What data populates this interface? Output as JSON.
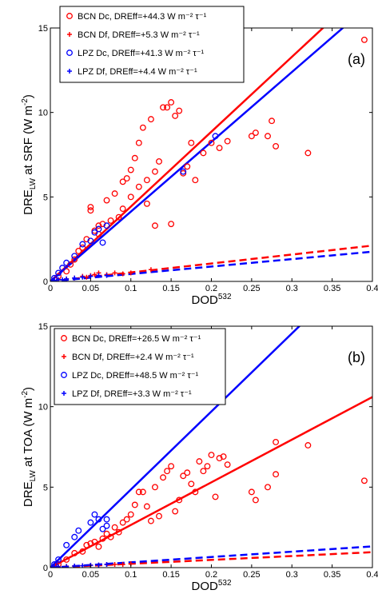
{
  "chart_data": [
    {
      "type": "scatter",
      "panel_label": "(a)",
      "xlabel": {
        "main": "DOD",
        "sup": "532"
      },
      "ylabel": {
        "main": "DRE",
        "sub": "LW",
        "rest": " at SRF (W m",
        "sup": "-2",
        "end": ")"
      },
      "xlim": [
        0,
        0.4
      ],
      "ylim": [
        0,
        15
      ],
      "xticks": [
        0,
        0.05,
        0.1,
        0.15,
        0.2,
        0.25,
        0.3,
        0.35,
        0.4
      ],
      "yticks": [
        0,
        5,
        10,
        15
      ],
      "legend": "upper left",
      "series": [
        {
          "name": "BCN Dc, DREff=+44.3 W m⁻² τ⁻¹",
          "color": "#ff0000",
          "marker": "circle",
          "line_style": "solid",
          "slope": 44.3,
          "x": [
            0.01,
            0.02,
            0.025,
            0.03,
            0.035,
            0.04,
            0.045,
            0.05,
            0.05,
            0.055,
            0.06,
            0.06,
            0.065,
            0.07,
            0.075,
            0.08,
            0.085,
            0.09,
            0.09,
            0.095,
            0.1,
            0.1,
            0.105,
            0.11,
            0.11,
            0.115,
            0.12,
            0.12,
            0.125,
            0.13,
            0.13,
            0.135,
            0.14,
            0.145,
            0.15,
            0.15,
            0.155,
            0.16,
            0.165,
            0.17,
            0.175,
            0.18,
            0.19,
            0.2,
            0.21,
            0.22,
            0.25,
            0.255,
            0.27,
            0.275,
            0.28,
            0.32,
            0.39
          ],
          "y": [
            0.3,
            0.6,
            1.0,
            1.3,
            1.8,
            2.0,
            2.5,
            4.2,
            4.4,
            3.0,
            3.3,
            2.8,
            3.4,
            4.8,
            3.6,
            5.2,
            3.8,
            4.3,
            5.9,
            6.1,
            6.6,
            5.0,
            7.3,
            8.2,
            5.6,
            9.1,
            6.0,
            4.6,
            9.6,
            6.5,
            3.3,
            7.1,
            10.3,
            10.3,
            10.6,
            3.4,
            9.8,
            10.1,
            6.4,
            6.8,
            8.2,
            6.0,
            7.6,
            8.2,
            7.9,
            8.3,
            8.6,
            8.8,
            8.6,
            9.5,
            8.0,
            7.6,
            14.3
          ]
        },
        {
          "name": "BCN Df, DREff=+5.3 W m⁻² τ⁻¹",
          "color": "#ff0000",
          "marker": "plus",
          "line_style": "dashed",
          "slope": 5.3,
          "x": [
            0.005,
            0.01,
            0.02,
            0.03,
            0.04,
            0.045,
            0.05,
            0.055,
            0.06,
            0.07,
            0.08,
            0.09,
            0.1,
            0.125
          ],
          "y": [
            0.05,
            0.1,
            0.15,
            0.2,
            0.3,
            0.25,
            0.35,
            0.4,
            0.5,
            0.4,
            0.5,
            0.45,
            0.5,
            0.7
          ]
        },
        {
          "name": "LPZ Dc, DREff=+41.3 W m⁻² τ⁻¹",
          "color": "#0000ff",
          "marker": "circle",
          "line_style": "solid",
          "slope": 41.3,
          "x": [
            0.005,
            0.01,
            0.015,
            0.02,
            0.03,
            0.04,
            0.05,
            0.055,
            0.06,
            0.065,
            0.07,
            0.165,
            0.205
          ],
          "y": [
            0.2,
            0.5,
            0.8,
            1.1,
            1.5,
            2.2,
            2.4,
            2.9,
            3.1,
            2.3,
            3.3,
            6.5,
            8.6
          ]
        },
        {
          "name": "LPZ Df, DREff=+4.4 W m⁻² τ⁻¹",
          "color": "#0000ff",
          "marker": "plus",
          "line_style": "dashed",
          "slope": 4.4,
          "x": [
            0.005,
            0.01,
            0.015,
            0.02,
            0.03,
            0.04,
            0.05,
            0.06,
            0.07
          ],
          "y": [
            0.05,
            0.1,
            0.1,
            0.15,
            0.2,
            0.25,
            0.3,
            0.35,
            0.35
          ]
        }
      ]
    },
    {
      "type": "scatter",
      "panel_label": "(b)",
      "xlabel": {
        "main": "DOD",
        "sup": "532"
      },
      "ylabel": {
        "main": "DRE",
        "sub": "LW",
        "rest": " at TOA (W m",
        "sup": "-2",
        "end": ")"
      },
      "xlim": [
        0,
        0.4
      ],
      "ylim": [
        0,
        15
      ],
      "xticks": [
        0,
        0.05,
        0.1,
        0.15,
        0.2,
        0.25,
        0.3,
        0.35,
        0.4
      ],
      "yticks": [
        0,
        5,
        10,
        15
      ],
      "legend": "upper left",
      "series": [
        {
          "name": "BCN Dc, DREff=+26.5 W m⁻² τ⁻¹",
          "color": "#ff0000",
          "marker": "circle",
          "line_style": "solid",
          "slope": 26.5,
          "x": [
            0.01,
            0.02,
            0.03,
            0.04,
            0.045,
            0.05,
            0.055,
            0.06,
            0.065,
            0.07,
            0.075,
            0.08,
            0.085,
            0.09,
            0.095,
            0.1,
            0.105,
            0.11,
            0.115,
            0.12,
            0.125,
            0.13,
            0.135,
            0.14,
            0.145,
            0.15,
            0.155,
            0.16,
            0.165,
            0.17,
            0.175,
            0.18,
            0.185,
            0.19,
            0.195,
            0.2,
            0.205,
            0.21,
            0.215,
            0.22,
            0.25,
            0.255,
            0.27,
            0.28,
            0.28,
            0.32,
            0.39
          ],
          "y": [
            0.2,
            0.5,
            0.9,
            1.0,
            1.4,
            1.5,
            1.6,
            1.3,
            1.8,
            2.1,
            1.9,
            2.5,
            2.2,
            2.8,
            3.0,
            3.3,
            3.9,
            4.7,
            4.7,
            3.8,
            2.9,
            5.0,
            3.2,
            5.6,
            6.0,
            6.3,
            3.5,
            4.2,
            5.7,
            5.9,
            5.2,
            4.7,
            6.6,
            6.0,
            6.3,
            7.0,
            4.4,
            6.8,
            6.9,
            6.4,
            4.7,
            4.2,
            5.0,
            7.8,
            5.8,
            7.6,
            5.4
          ]
        },
        {
          "name": "BCN Df, DREff=+2.4 W m⁻² τ⁻¹",
          "color": "#ff0000",
          "marker": "plus",
          "line_style": "dashed",
          "slope": 2.4,
          "x": [
            0.005,
            0.01,
            0.02,
            0.03,
            0.04,
            0.05,
            0.06,
            0.07,
            0.08,
            0.09,
            0.1
          ],
          "y": [
            0.02,
            0.05,
            0.08,
            0.1,
            0.12,
            0.15,
            0.15,
            0.2,
            0.2,
            0.2,
            0.25
          ]
        },
        {
          "name": "LPZ Dc, DREff=+48.5 W m⁻² τ⁻¹",
          "color": "#0000ff",
          "marker": "circle",
          "line_style": "solid",
          "slope": 48.5,
          "x": [
            0.005,
            0.01,
            0.02,
            0.03,
            0.035,
            0.05,
            0.055,
            0.06,
            0.065,
            0.07,
            0.07
          ],
          "y": [
            0.2,
            0.5,
            1.4,
            1.9,
            2.3,
            2.8,
            3.3,
            3.0,
            2.4,
            2.6,
            3.0
          ]
        },
        {
          "name": "LPZ Df, DREff=+3.3 W m⁻² τ⁻¹",
          "color": "#0000ff",
          "marker": "plus",
          "line_style": "dashed",
          "slope": 3.3,
          "x": [
            0.005,
            0.01,
            0.02,
            0.03,
            0.04,
            0.05,
            0.06,
            0.07
          ],
          "y": [
            0.02,
            0.05,
            0.07,
            0.1,
            0.12,
            0.15,
            0.17,
            0.2
          ]
        }
      ]
    }
  ]
}
